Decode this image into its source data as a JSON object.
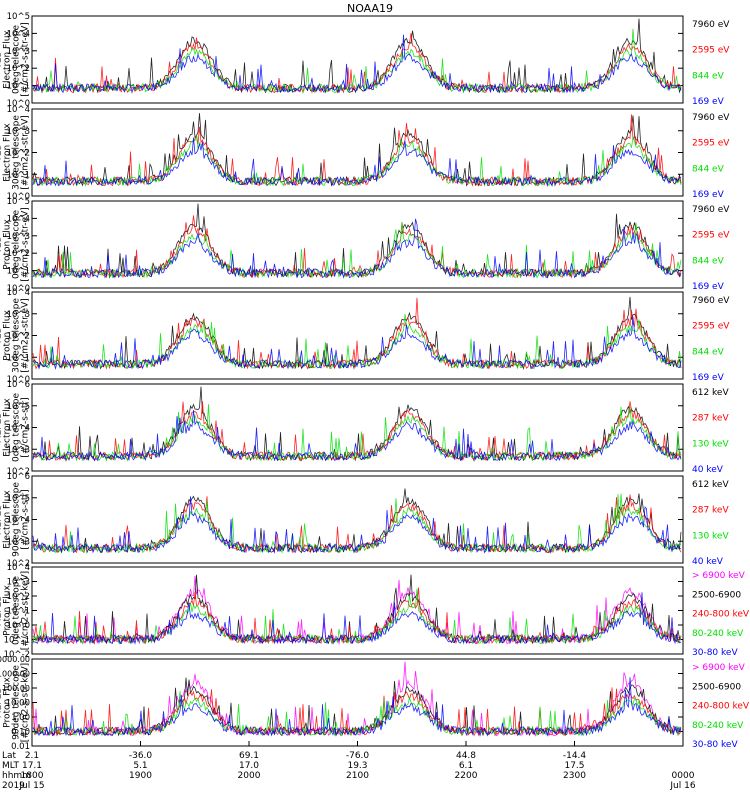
{
  "title": "NOAA19",
  "colors": {
    "black": "#000000",
    "red": "#ff0000",
    "green": "#00e000",
    "blue": "#0000ff",
    "magenta": "#ff00ff",
    "axis": "#000000"
  },
  "chart_data": [
    {
      "type": "line",
      "ylabel": [
        "TED",
        "Electron Flux",
        "0deg telescope",
        "[#/cm2-s-str-eV]"
      ],
      "ytick_labels": [
        "10^0",
        "10^1",
        "10^2",
        "10^3",
        "10^4",
        "10^5"
      ],
      "ylim": [
        1,
        100000
      ],
      "series": [
        {
          "name": "7960 eV",
          "color": "#000000"
        },
        {
          "name": "2595 eV",
          "color": "#ff0000"
        },
        {
          "name": "844 eV",
          "color": "#00e000"
        },
        {
          "name": "169 eV",
          "color": "#0000ff"
        }
      ]
    },
    {
      "type": "line",
      "ylabel": [
        "TED",
        "Electron Flux",
        "30deg telescope",
        "[#/cm2-s-str-eV]"
      ],
      "ytick_labels": [
        "10^0",
        "10^1",
        "10^2",
        "10^3",
        "10^4"
      ],
      "ylim": [
        1,
        10000
      ],
      "series": [
        {
          "name": "7960 eV",
          "color": "#000000"
        },
        {
          "name": "2595 eV",
          "color": "#ff0000"
        },
        {
          "name": "844 eV",
          "color": "#00e000"
        },
        {
          "name": "169 eV",
          "color": "#0000ff"
        }
      ]
    },
    {
      "type": "line",
      "ylabel": [
        "TED",
        "Proton Flux",
        "0deg telescope",
        "[#/cm2-s-str-eV]"
      ],
      "ytick_labels": [
        "10^0",
        "10^1",
        "10^2",
        "10^3",
        "10^4",
        "10^5"
      ],
      "ylim": [
        1,
        100000
      ],
      "series": [
        {
          "name": "7960 eV",
          "color": "#000000"
        },
        {
          "name": "2595 eV",
          "color": "#ff0000"
        },
        {
          "name": "844 eV",
          "color": "#00e000"
        },
        {
          "name": "169 eV",
          "color": "#0000ff"
        }
      ]
    },
    {
      "type": "line",
      "ylabel": [
        "TED",
        "Proton Flux",
        "30deg telescope",
        "[#/cm2-s-str-eV]"
      ],
      "ytick_labels": [
        "10^0",
        "10^1",
        "10^2",
        "10^3",
        "10^4"
      ],
      "ylim": [
        1,
        10000
      ],
      "series": [
        {
          "name": "7960 eV",
          "color": "#000000"
        },
        {
          "name": "2595 eV",
          "color": "#ff0000"
        },
        {
          "name": "844 eV",
          "color": "#00e000"
        },
        {
          "name": "169 eV",
          "color": "#0000ff"
        }
      ]
    },
    {
      "type": "line",
      "ylabel": [
        "MEPED",
        "Electron Flux",
        "0deg telescope",
        "[#/cm2-s-str]"
      ],
      "ytick_labels": [
        "10^2",
        "10^3",
        "10^4",
        "10^5",
        "10^6"
      ],
      "ylim": [
        100,
        1000000
      ],
      "series": [
        {
          "name": "612 keV",
          "color": "#000000"
        },
        {
          "name": "287 keV",
          "color": "#ff0000"
        },
        {
          "name": "130 keV",
          "color": "#00e000"
        },
        {
          "name": "40 keV",
          "color": "#0000ff"
        }
      ]
    },
    {
      "type": "line",
      "ylabel": [
        "MEPED",
        "Electron Flux",
        "90deg telescope",
        "[#/cm2-s-str]"
      ],
      "ytick_labels": [
        "10^2",
        "10^3",
        "10^4",
        "10^5",
        "10^6"
      ],
      "ylim": [
        100,
        1000000
      ],
      "series": [
        {
          "name": "612 keV",
          "color": "#000000"
        },
        {
          "name": "287 keV",
          "color": "#ff0000"
        },
        {
          "name": "130 keV",
          "color": "#00e000"
        },
        {
          "name": "40 keV",
          "color": "#0000ff"
        }
      ]
    },
    {
      "type": "line",
      "ylabel": [
        "MEPED",
        "Proton Flux",
        "0deg telescope",
        "[#/cm2-s-str-keV]"
      ],
      "ytick_labels": [
        "10^-2",
        "10^-1",
        "10^0",
        "10^1",
        "10^2",
        "10^3",
        "10^4"
      ],
      "ylim": [
        0.01,
        10000
      ],
      "series": [
        {
          "name": "> 6900 keV",
          "color": "#ff00ff"
        },
        {
          "name": "2500-6900",
          "color": "#000000"
        },
        {
          "name": "240-800 keV",
          "color": "#ff0000"
        },
        {
          "name": "80-240 keV",
          "color": "#00e000"
        },
        {
          "name": "30-80 keV",
          "color": "#0000ff"
        }
      ]
    },
    {
      "type": "line",
      "ylabel": [
        "MEPED",
        "Proton Flux",
        "90deg telescope",
        "[#/cm2-s-str-keV]"
      ],
      "ytick_labels": [
        "0.01",
        "0.10",
        "1.00",
        "10.00",
        "100.00",
        "1000.00",
        "10000.00"
      ],
      "ylim": [
        0.01,
        10000
      ],
      "series": [
        {
          "name": "> 6900 keV",
          "color": "#ff00ff"
        },
        {
          "name": "2500-6900",
          "color": "#000000"
        },
        {
          "name": "240-800 keV",
          "color": "#ff0000"
        },
        {
          "name": "80-240 keV",
          "color": "#00e000"
        },
        {
          "name": "30-80 keV",
          "color": "#0000ff"
        }
      ]
    }
  ],
  "time_axis": {
    "row_labels": [
      "Lat",
      "MLT",
      "hhmm",
      "2019"
    ],
    "columns": [
      {
        "lat": "2.1",
        "mlt": "17.1",
        "hhmm": "1800",
        "date": "Jul 15"
      },
      {
        "lat": "-36.0",
        "mlt": "5.1",
        "hhmm": "1900",
        "date": ""
      },
      {
        "lat": "69.1",
        "mlt": "17.0",
        "hhmm": "2000",
        "date": ""
      },
      {
        "lat": "-76.0",
        "mlt": "19.3",
        "hhmm": "2100",
        "date": ""
      },
      {
        "lat": "44.8",
        "mlt": "6.1",
        "hhmm": "2200",
        "date": ""
      },
      {
        "lat": "-14.4",
        "mlt": "17.5",
        "hhmm": "2300",
        "date": ""
      },
      {
        "lat": "",
        "mlt": "",
        "hhmm": "0000",
        "date": "Jul 16"
      }
    ]
  }
}
